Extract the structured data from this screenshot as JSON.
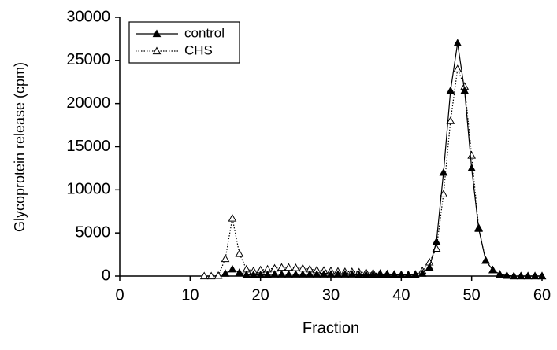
{
  "chart_data": {
    "type": "line",
    "x_label": "Fraction",
    "y_label": "Glycoprotein release (cpm)",
    "x": [
      12,
      13,
      14,
      15,
      16,
      17,
      18,
      19,
      20,
      21,
      22,
      23,
      24,
      25,
      26,
      27,
      28,
      29,
      30,
      31,
      32,
      33,
      34,
      35,
      36,
      37,
      38,
      39,
      40,
      41,
      42,
      43,
      44,
      45,
      46,
      47,
      48,
      49,
      50,
      51,
      52,
      53,
      54,
      55,
      56,
      57,
      58,
      59,
      60
    ],
    "series": [
      {
        "name": "control",
        "color": "#000000",
        "line_style": "solid",
        "marker": "filled-triangle",
        "values": [
          null,
          null,
          null,
          300,
          800,
          400,
          150,
          150,
          150,
          150,
          200,
          200,
          200,
          200,
          200,
          200,
          200,
          200,
          200,
          200,
          200,
          200,
          150,
          150,
          150,
          150,
          150,
          150,
          150,
          150,
          150,
          300,
          1000,
          4000,
          12000,
          21500,
          27000,
          21500,
          12500,
          5500,
          1800,
          700,
          200,
          50,
          0,
          0,
          0,
          0,
          0
        ]
      },
      {
        "name": "CHS",
        "color": "#000000",
        "line_style": "dotted",
        "marker": "open-triangle",
        "values": [
          0,
          0,
          50,
          2000,
          6700,
          2600,
          800,
          600,
          700,
          800,
          900,
          1000,
          1000,
          950,
          900,
          800,
          700,
          650,
          600,
          550,
          500,
          500,
          450,
          400,
          350,
          300,
          250,
          200,
          150,
          150,
          200,
          600,
          1600,
          3200,
          9500,
          18000,
          24000,
          22000,
          14000,
          5600,
          1800,
          700,
          200,
          50,
          0,
          0,
          0,
          0,
          0
        ]
      }
    ],
    "xlim": [
      0,
      60
    ],
    "xticks": [
      0,
      10,
      20,
      30,
      40,
      50,
      60
    ],
    "ylim": [
      0,
      30000
    ],
    "yticks": [
      0,
      5000,
      10000,
      15000,
      20000,
      25000,
      30000
    ],
    "legend": "top-left"
  }
}
